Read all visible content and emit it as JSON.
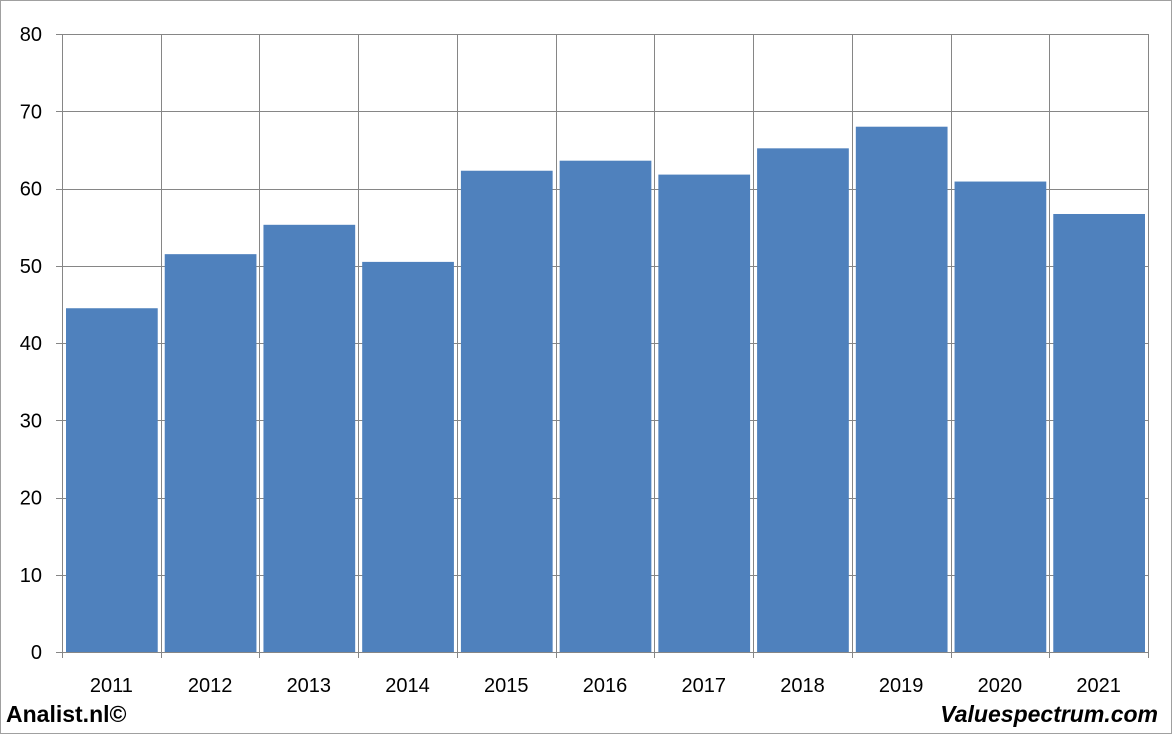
{
  "chart_data": {
    "type": "bar",
    "categories": [
      "2011",
      "2012",
      "2013",
      "2014",
      "2015",
      "2016",
      "2017",
      "2018",
      "2019",
      "2020",
      "2021"
    ],
    "values": [
      44.5,
      51.5,
      55.3,
      50.5,
      62.3,
      63.6,
      61.8,
      65.2,
      68.0,
      60.9,
      56.7
    ],
    "title": "",
    "xlabel": "",
    "ylabel": "",
    "ylim": [
      0,
      80
    ],
    "yticks": [
      0,
      10,
      20,
      30,
      40,
      50,
      60,
      70,
      80
    ],
    "grid": true,
    "bar_color": "#4F81BD"
  },
  "footer": {
    "left": "Analist.nl©",
    "right": "Valuespectrum.com"
  },
  "colors": {
    "frame_border": "#A0A0A0",
    "gridline": "#868686",
    "bar_fill": "#4F81BD"
  }
}
